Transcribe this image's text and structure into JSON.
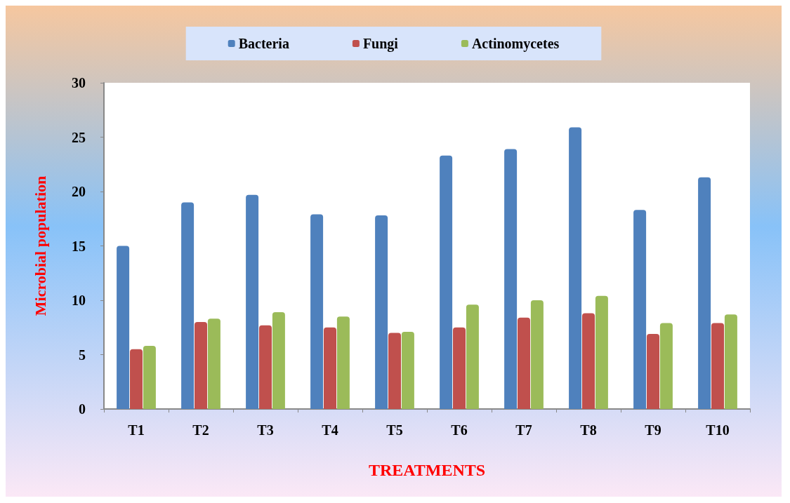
{
  "chart_data": {
    "type": "bar",
    "xlabel": "TREATMENTS",
    "ylabel": "Microbial population",
    "categories": [
      "T1",
      "T2",
      "T3",
      "T4",
      "T5",
      "T6",
      "T7",
      "T8",
      "T9",
      "T10"
    ],
    "series": [
      {
        "name": "Bacteria",
        "color": "#4f81bd",
        "values": [
          15.0,
          19.0,
          19.7,
          17.9,
          17.8,
          23.3,
          23.9,
          25.9,
          18.3,
          21.3
        ]
      },
      {
        "name": "Fungi",
        "color": "#c0504d",
        "values": [
          5.5,
          8.0,
          7.7,
          7.5,
          7.0,
          7.5,
          8.4,
          8.8,
          6.9,
          7.9
        ]
      },
      {
        "name": "Actinomycetes",
        "color": "#9bbb59",
        "values": [
          5.8,
          8.3,
          8.9,
          8.5,
          7.1,
          9.6,
          10.0,
          10.4,
          7.9,
          8.7
        ]
      }
    ],
    "ylim": [
      0,
      30
    ],
    "yticks": [
      0,
      5,
      10,
      15,
      20,
      25,
      30
    ],
    "grid": false,
    "legend": "top"
  }
}
